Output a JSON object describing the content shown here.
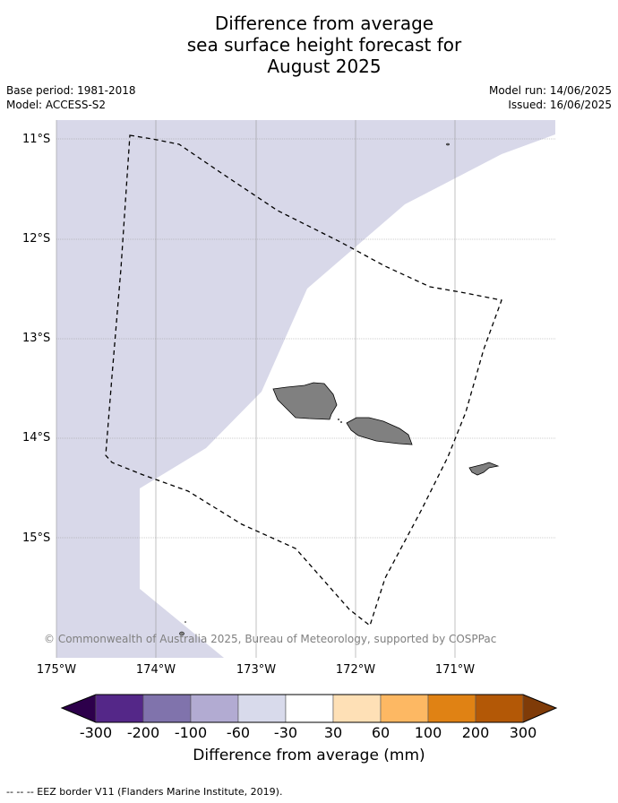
{
  "title": {
    "line1": "Difference from average",
    "line2": "sea surface height forecast for",
    "line3": "August 2025"
  },
  "meta": {
    "base_period": "Base period: 1981-2018",
    "model": "Model: ACCESS-S2",
    "model_run": "Model run: 14/06/2025",
    "issued": "Issued: 16/06/2025"
  },
  "map": {
    "lon_range": [
      -175,
      -170
    ],
    "lat_range": [
      -16.2,
      -10.8
    ],
    "lat_labels": [
      "11°S",
      "12°S",
      "13°S",
      "14°S",
      "15°S"
    ],
    "lon_labels": [
      "175°W",
      "174°W",
      "173°W",
      "172°W",
      "171°W"
    ],
    "copyright": "© Commonwealth of Australia 2025, Bureau of Meteorology, supported by COSPPac",
    "anomaly_fill_color": "#d8d8e9",
    "land_color": "#808080",
    "anomaly_region_category": "-60 to -30 mm"
  },
  "colorbar": {
    "ticks": [
      "-300",
      "-200",
      "-100",
      "-60",
      "-30",
      "30",
      "60",
      "100",
      "200",
      "300"
    ],
    "colors": [
      "#2d004b",
      "#542788",
      "#8073ac",
      "#b2abd2",
      "#d8daeb",
      "#ffffff",
      "#fee0b6",
      "#fdb863",
      "#e08214",
      "#b35806",
      "#7f3b08"
    ],
    "label": "Difference from average (mm)"
  },
  "footnote": "--  --  -- EEZ border V11 (Flanders Marine Institute, 2019)."
}
